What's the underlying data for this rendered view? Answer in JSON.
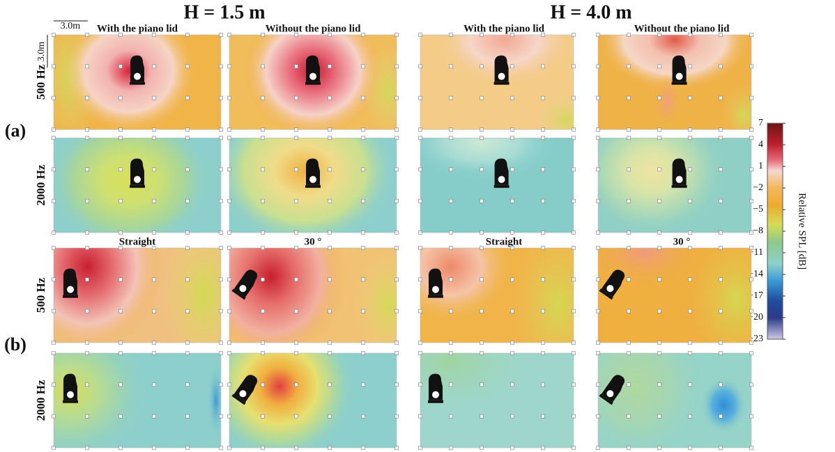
{
  "headings": [
    "H = 1.5 m",
    "H = 4.0 m"
  ],
  "groups": [
    {
      "label": "(a)",
      "columns": [
        "With the piano lid",
        "Without the piano lid",
        "With the piano lid",
        "Without the piano lid"
      ],
      "rows": [
        "500 Hz",
        "2000 Hz"
      ]
    },
    {
      "label": "(b)",
      "columns": [
        "Straight",
        "30 °",
        "Straight",
        "30 °"
      ],
      "rows": [
        "500 Hz",
        "2000 Hz"
      ]
    }
  ],
  "scale": [
    "3.0m",
    "3.0m"
  ],
  "colorbar": {
    "label": "Relative SPL [dB]",
    "lim": [
      -23,
      7
    ],
    "ticks": [
      7,
      4,
      1,
      {
        "value": -2,
        "label": "−2"
      },
      {
        "value": -5,
        "label": "−5"
      },
      {
        "value": -8,
        "label": "−8"
      },
      {
        "value": -11,
        "label": "−11"
      },
      {
        "value": -14,
        "label": "−14"
      },
      {
        "value": -17,
        "label": "−17"
      },
      {
        "value": -20,
        "label": "−20"
      },
      {
        "value": -23,
        "label": "−23"
      }
    ]
  }
}
